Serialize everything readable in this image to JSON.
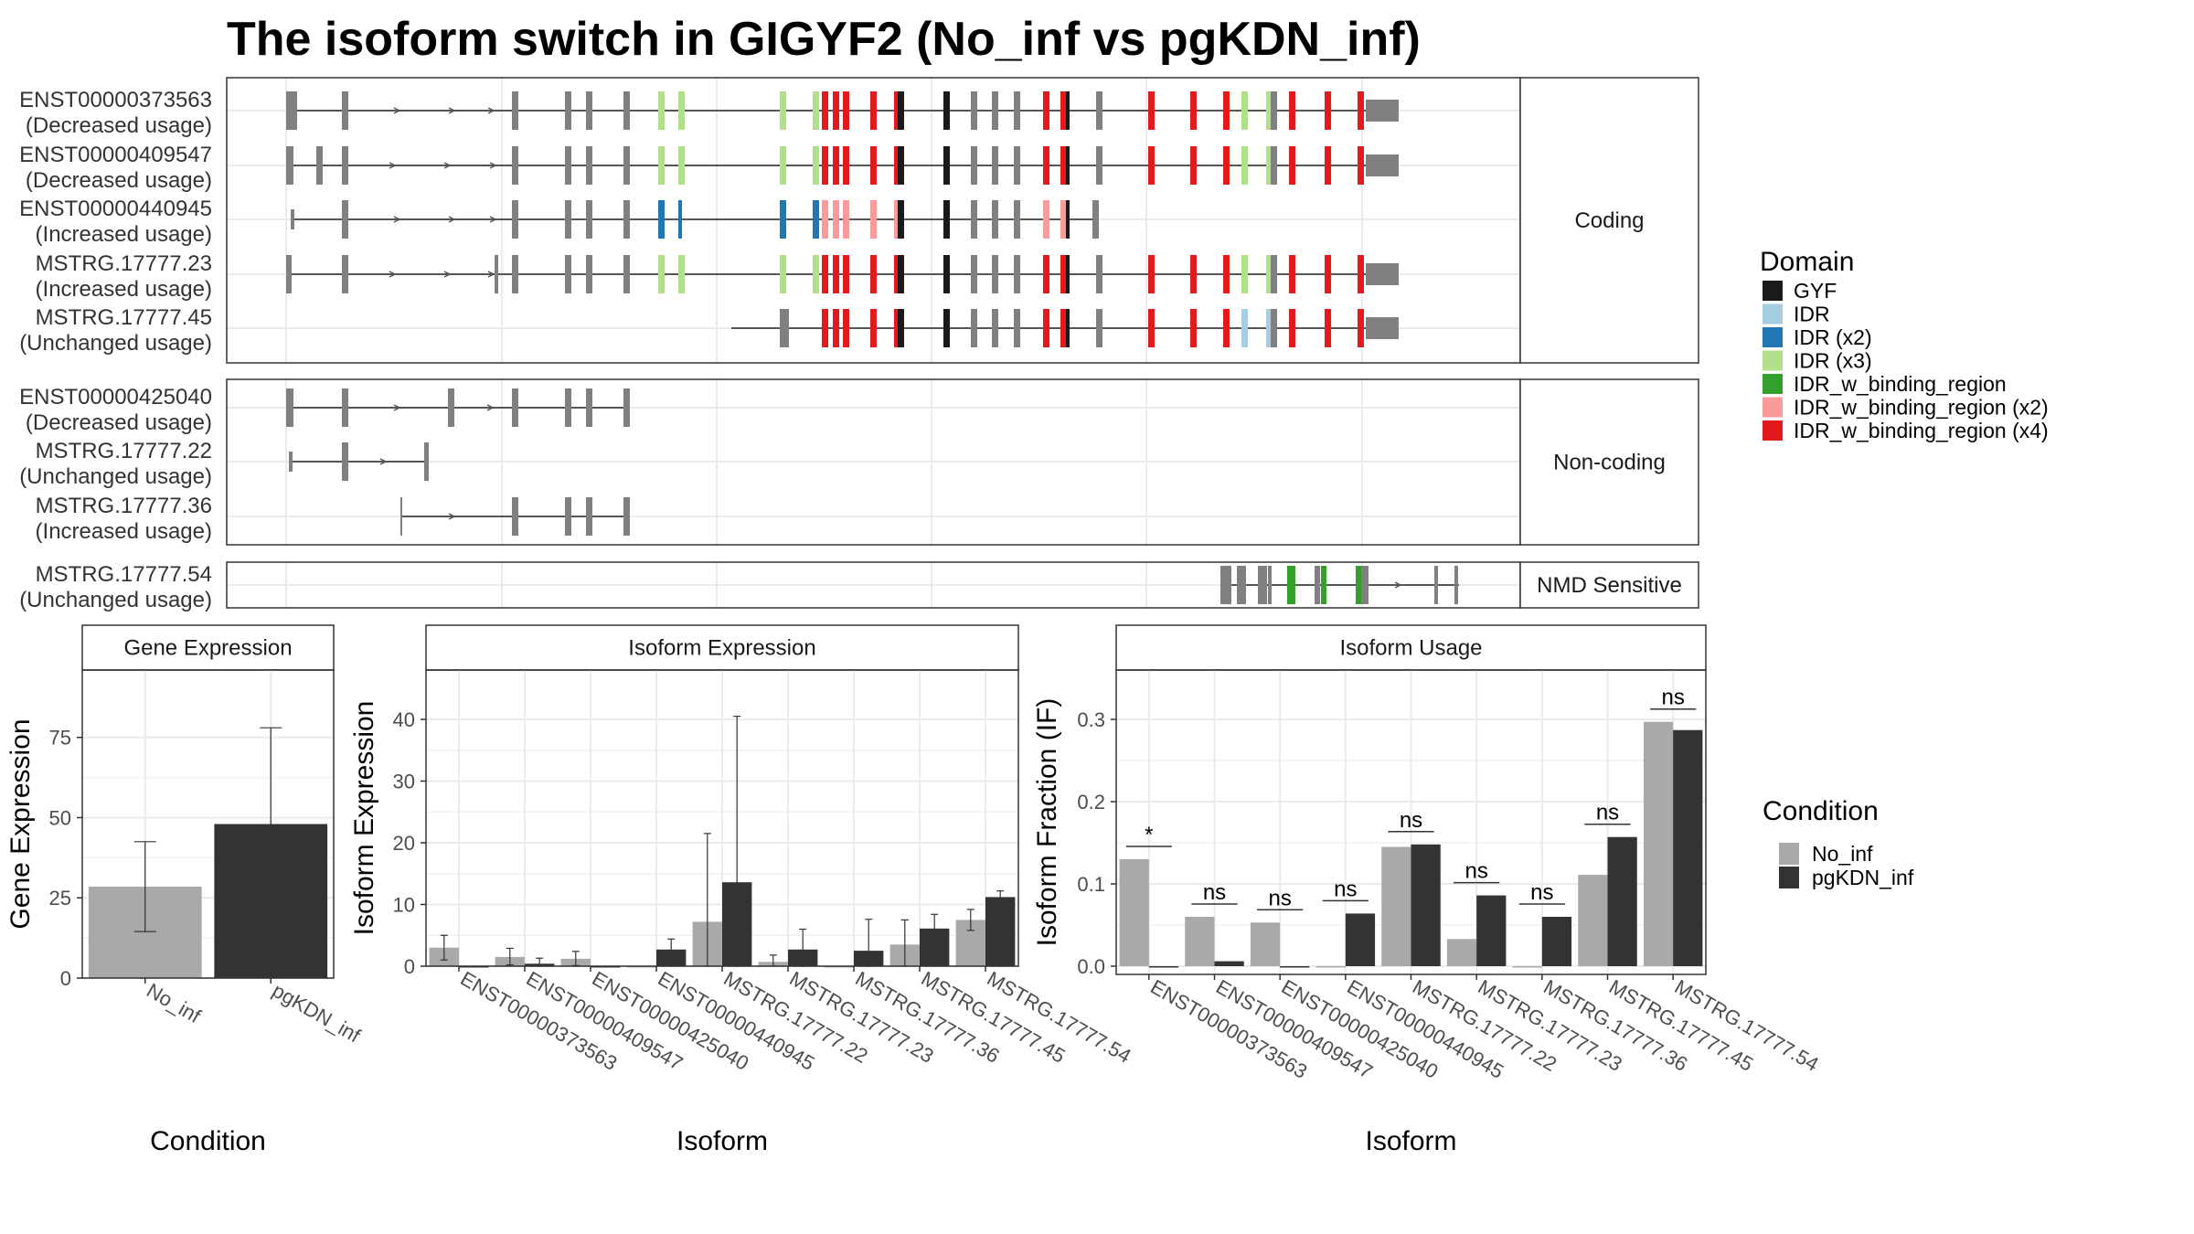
{
  "title": "The isoform switch in GIGYF2 (No_inf vs pgKDN_inf)",
  "colors": {
    "GYF": "#1a1a1a",
    "IDR": "#a6cee3",
    "IDR (x2)": "#1f78b4",
    "IDR (x3)": "#b2df8a",
    "IDR_w_binding_region": "#33a02c",
    "IDR_w_binding_region (x2)": "#fb9a99",
    "IDR_w_binding_region (x4)": "#e31a1c",
    "exon": "#808080",
    "No_inf": "#a9a9a9",
    "pgKDN_inf": "#333333"
  },
  "structure": {
    "groups": [
      {
        "label": "Coding",
        "isoforms": [
          {
            "id": "ENST00000373563",
            "usage": "(Decreased usage)"
          },
          {
            "id": "ENST00000409547",
            "usage": "(Decreased usage)"
          },
          {
            "id": "ENST00000440945",
            "usage": "(Increased usage)"
          },
          {
            "id": "MSTRG.17777.23",
            "usage": "(Increased usage)"
          },
          {
            "id": "MSTRG.17777.45",
            "usage": "(Unchanged usage)"
          }
        ]
      },
      {
        "label": "Non-coding",
        "isoforms": [
          {
            "id": "ENST00000425040",
            "usage": "(Decreased usage)"
          },
          {
            "id": "MSTRG.17777.22",
            "usage": "(Unchanged usage)"
          },
          {
            "id": "MSTRG.17777.36",
            "usage": "(Increased usage)"
          }
        ]
      },
      {
        "label": "NMD Sensitive",
        "isoforms": [
          {
            "id": "MSTRG.17777.54",
            "usage": "(Unchanged usage)"
          }
        ]
      }
    ]
  },
  "legend_domain": {
    "title": "Domain",
    "items": [
      "GYF",
      "IDR",
      "IDR (x2)",
      "IDR (x3)",
      "IDR_w_binding_region",
      "IDR_w_binding_region (x2)",
      "IDR_w_binding_region (x4)"
    ]
  },
  "legend_condition": {
    "title": "Condition",
    "items": [
      "No_inf",
      "pgKDN_inf"
    ]
  },
  "chart_data": [
    {
      "type": "bar",
      "title": "Gene Expression",
      "xlabel": "Condition",
      "ylabel": "Gene Expression",
      "categories": [
        "No_inf",
        "pgKDN_inf"
      ],
      "values": [
        28.5,
        48
      ],
      "error_low": [
        14.5,
        18
      ],
      "error_high": [
        42.5,
        78
      ],
      "ylim": [
        0,
        96
      ],
      "yticks": [
        0,
        25,
        50,
        75
      ]
    },
    {
      "type": "bar",
      "title": "Isoform Expression",
      "xlabel": "Isoform",
      "ylabel": "Isoform Expression",
      "categories": [
        "ENST00000373563",
        "ENST00000409547",
        "ENST00000425040",
        "ENST00000440945",
        "MSTRG.17777.22",
        "MSTRG.17777.23",
        "MSTRG.17777.36",
        "MSTRG.17777.45",
        "MSTRG.17777.54"
      ],
      "series": [
        {
          "name": "No_inf",
          "values": [
            3,
            1.5,
            1.2,
            0,
            7.2,
            0.7,
            0,
            3.5,
            7.5
          ],
          "error_low": [
            1,
            0.2,
            0.1,
            0,
            0,
            0,
            0,
            0,
            5.8
          ],
          "error_high": [
            5,
            2.9,
            2.4,
            0,
            21.5,
            1.8,
            0,
            7.5,
            9.2
          ]
        },
        {
          "name": "pgKDN_inf",
          "values": [
            0,
            0.4,
            0,
            2.7,
            13.6,
            2.7,
            2.5,
            6.1,
            11.2
          ],
          "error_low": [
            0,
            0,
            0,
            1,
            0,
            0,
            0,
            3.9,
            10.1
          ],
          "error_high": [
            0,
            1.3,
            0,
            4.4,
            40.5,
            6,
            7.6,
            8.4,
            12.2
          ]
        }
      ],
      "ylim": [
        0,
        48
      ],
      "yticks": [
        0,
        10,
        20,
        30,
        40
      ]
    },
    {
      "type": "bar",
      "title": "Isoform Usage",
      "xlabel": "Isoform",
      "ylabel": "Isoform Fraction (IF)",
      "categories": [
        "ENST00000373563",
        "ENST00000409547",
        "ENST00000425040",
        "ENST00000440945",
        "MSTRG.17777.22",
        "MSTRG.17777.23",
        "MSTRG.17777.36",
        "MSTRG.17777.45",
        "MSTRG.17777.54"
      ],
      "series": [
        {
          "name": "No_inf",
          "values": [
            0.13,
            0.06,
            0.053,
            0,
            0.145,
            0.033,
            0,
            0.111,
            0.297
          ]
        },
        {
          "name": "pgKDN_inf",
          "values": [
            0,
            0.006,
            0,
            0.064,
            0.148,
            0.086,
            0.06,
            0.157,
            0.287
          ]
        }
      ],
      "significance": [
        "*",
        "ns",
        "ns",
        "ns",
        "ns",
        "ns",
        "ns",
        "ns",
        "ns"
      ],
      "ylim": [
        -0.01,
        0.36
      ],
      "yticks": [
        0.0,
        0.1,
        0.2,
        0.3
      ],
      "ytick_labels": [
        "0.0",
        "0.1",
        "0.2",
        "0.3"
      ]
    }
  ]
}
